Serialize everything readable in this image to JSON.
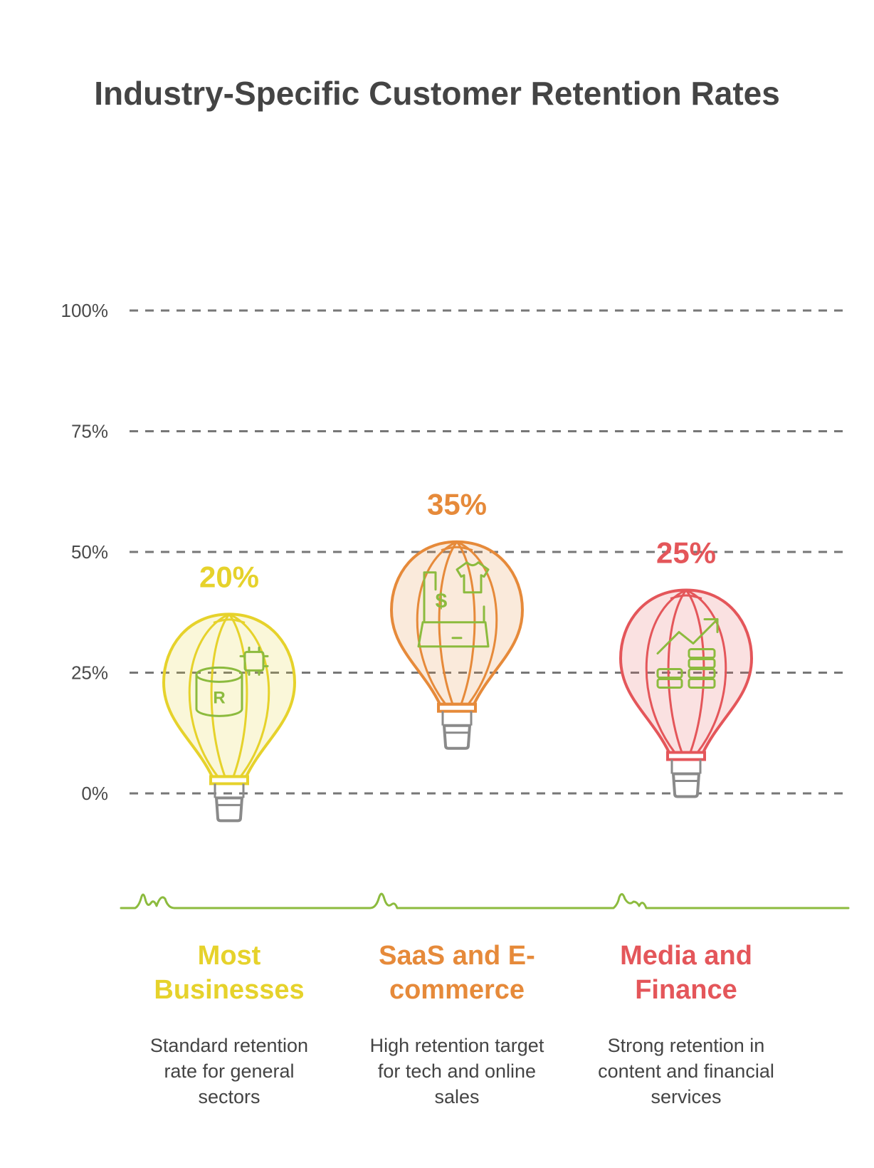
{
  "chart_data": {
    "type": "bar",
    "title": "Industry-Specific Customer Retention Rates",
    "ylim": [
      0,
      100
    ],
    "yticks": [
      "0%",
      "25%",
      "50%",
      "75%",
      "100%"
    ],
    "grid": true,
    "categories": [
      "Most Businesses",
      "SaaS and E-commerce",
      "Media and Finance"
    ],
    "values": [
      20,
      35,
      25
    ],
    "value_labels": [
      "20%",
      "35%",
      "25%"
    ],
    "descriptions": [
      "Standard retention rate for general sectors",
      "High retention target for tech and online sales",
      "Strong retention in content and financial services"
    ],
    "colors": [
      "#e6d22b",
      "#e68a3a",
      "#e4565a"
    ],
    "icons": [
      "database-chip-icon",
      "laptop-shop-icon",
      "growth-money-icon"
    ]
  },
  "titles_split": [
    [
      "Most",
      "Businesses"
    ],
    [
      "SaaS and E-",
      "commerce"
    ],
    [
      "Media and",
      "Finance"
    ]
  ],
  "desc_split": [
    [
      "Standard retention",
      "rate for general",
      "sectors"
    ],
    [
      "High retention target",
      "for tech and online",
      "sales"
    ],
    [
      "Strong retention in",
      "content and financial",
      "services"
    ]
  ]
}
